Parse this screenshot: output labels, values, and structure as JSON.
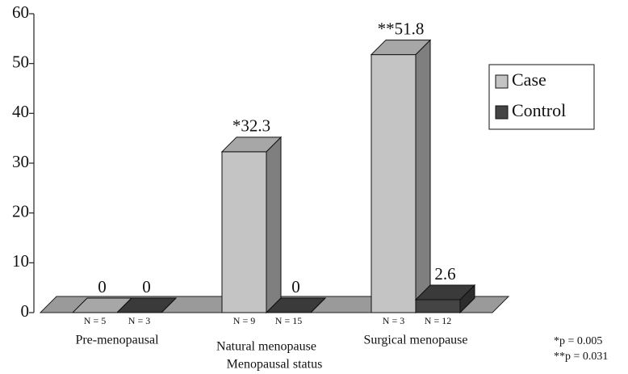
{
  "chart_data": {
    "type": "bar3d",
    "x_label": "Menopausal status",
    "categories": [
      "Pre-menopausal",
      "Natural menopause",
      "Surgical menopause"
    ],
    "series": [
      {
        "name": "Case",
        "color": "#c4c4c4",
        "values": [
          0,
          32.3,
          51.8
        ],
        "value_labels": [
          "0",
          "*32.3",
          "**51.8"
        ],
        "n_labels": [
          "N = 5",
          "N = 9",
          "N = 3"
        ]
      },
      {
        "name": "Control",
        "color": "#444444",
        "values": [
          0,
          0,
          2.6
        ],
        "n_labels": [
          "N = 3",
          "N = 15",
          "N = 12"
        ]
      }
    ],
    "ylim": [
      0,
      60
    ],
    "yticks": [
      0,
      10,
      20,
      30,
      40,
      50,
      60
    ],
    "legend": "right",
    "footnotes": [
      "*p = 0.005",
      "**p = 0.031"
    ]
  }
}
